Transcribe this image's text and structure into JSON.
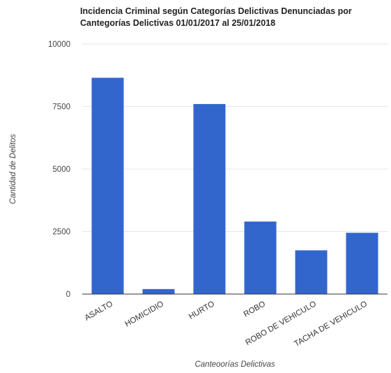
{
  "chart_data": {
    "type": "bar",
    "title_lines": [
      "Incidencia Criminal según Categorías Delictivas Denunciadas por",
      "Cantegorías Delictivas 01/01/2017 al 25/01/2018"
    ],
    "xlabel": "Canteoorías Delictivas",
    "ylabel": "Cantidad de Delitos",
    "categories": [
      "ASALTO",
      "HOMICIDIO",
      "HURTO",
      "ROBO",
      "ROBO DE VEHICULO",
      "TACHA DE VEHICULO"
    ],
    "values": [
      8650,
      200,
      7600,
      2900,
      1750,
      2450
    ],
    "ylim": [
      0,
      10000
    ],
    "yticks": [
      0,
      2500,
      5000,
      7500,
      10000
    ],
    "ytick_labels": [
      "0",
      "2500",
      "5000",
      "7500",
      "10000"
    ],
    "grid": true,
    "bar_color": "#3366cc"
  }
}
